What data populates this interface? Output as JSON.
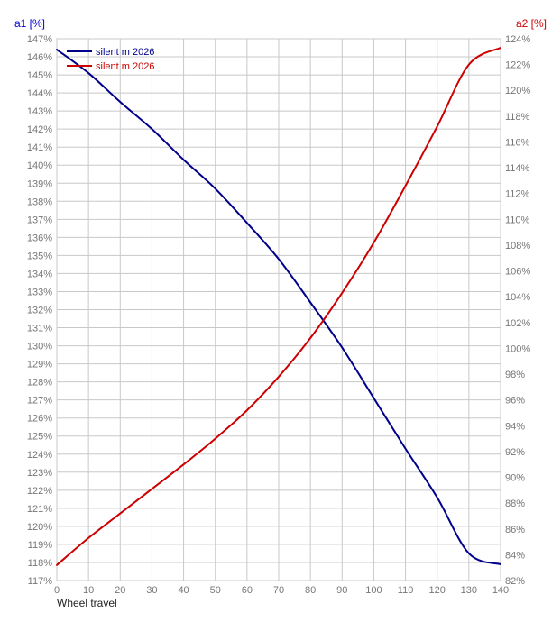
{
  "chart_data": {
    "type": "line",
    "xlabel": "Wheel travel",
    "x_ticks": [
      0,
      10,
      20,
      30,
      40,
      50,
      60,
      70,
      80,
      90,
      100,
      110,
      120,
      130,
      140
    ],
    "xlim": [
      0,
      140
    ],
    "y_left": {
      "label": "a1 [%]",
      "ylim": [
        117,
        147
      ],
      "ticks": [
        117,
        118,
        119,
        120,
        121,
        122,
        123,
        124,
        125,
        126,
        127,
        128,
        129,
        130,
        131,
        132,
        133,
        134,
        135,
        136,
        137,
        138,
        139,
        140,
        141,
        142,
        143,
        144,
        145,
        146,
        147
      ],
      "tick_suffix": "%",
      "color": "#cc0000"
    },
    "y_right": {
      "label": "a2 [%]",
      "ylim": [
        82,
        124
      ],
      "ticks": [
        82,
        84,
        86,
        88,
        90,
        92,
        94,
        96,
        98,
        100,
        102,
        104,
        106,
        108,
        110,
        112,
        114,
        116,
        118,
        120,
        122,
        124
      ],
      "tick_suffix": "%",
      "color": "#cc0000"
    },
    "grid": true,
    "legend_position": "top-left",
    "series": [
      {
        "name": "silent m 2026",
        "axis": "left",
        "color": "#00008b",
        "x": [
          0,
          10,
          20,
          30,
          40,
          50,
          60,
          70,
          80,
          90,
          100,
          110,
          120,
          130,
          140
        ],
        "values": [
          146.4,
          145.1,
          143.5,
          142.0,
          140.3,
          138.7,
          136.8,
          134.8,
          132.4,
          129.9,
          127.1,
          124.3,
          121.6,
          118.5,
          117.9
        ]
      },
      {
        "name": "silent m 2026",
        "axis": "right",
        "color": "#cc0000",
        "x": [
          0,
          10,
          20,
          30,
          40,
          50,
          60,
          70,
          80,
          90,
          100,
          110,
          120,
          130,
          140
        ],
        "values": [
          83.2,
          85.3,
          87.2,
          89.1,
          91.0,
          93.0,
          95.2,
          97.8,
          100.8,
          104.3,
          108.2,
          112.6,
          117.2,
          122.0,
          123.3
        ]
      }
    ]
  }
}
